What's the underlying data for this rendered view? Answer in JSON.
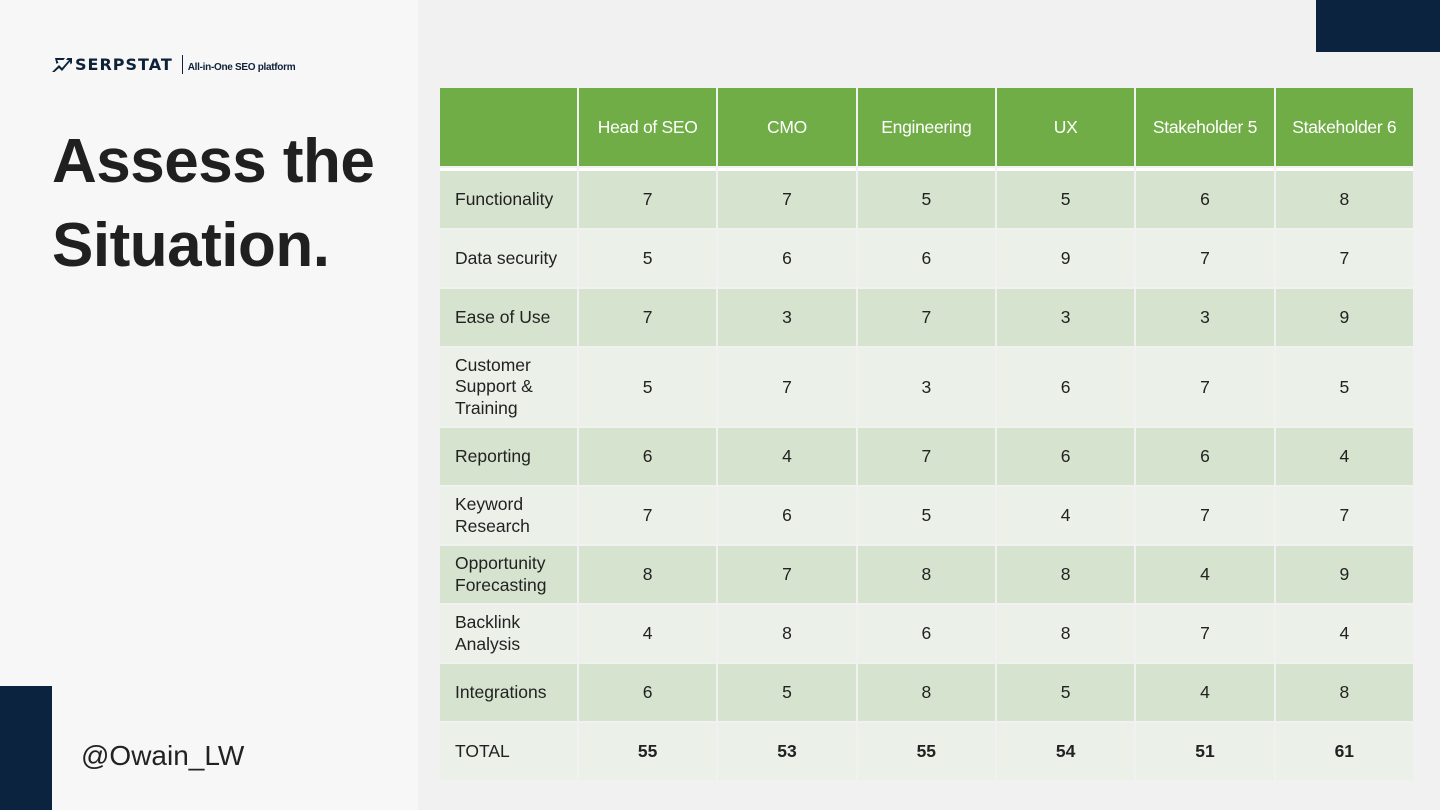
{
  "brand": {
    "name": "SERPSTAT",
    "tagline": "All-in-One SEO platform"
  },
  "slide": {
    "title_line1": "Assess the",
    "title_line2": "Situation.",
    "handle": "@Owain_LW"
  },
  "colors": {
    "header_green": "#70ad47",
    "row_dark": "#d6e3ce",
    "row_light": "#ebf0e8",
    "navy": "#0c2340"
  },
  "table": {
    "columns": [
      "",
      "Head of SEO",
      "CMO",
      "Engineering",
      "UX",
      "Stakeholder 5",
      "Stakeholder 6"
    ],
    "rows": [
      {
        "label": "Functionality",
        "values": [
          "7",
          "7",
          "5",
          "5",
          "6",
          "8"
        ]
      },
      {
        "label": "Data security",
        "values": [
          "5",
          "6",
          "6",
          "9",
          "7",
          "7"
        ]
      },
      {
        "label": "Ease of Use",
        "values": [
          "7",
          "3",
          "7",
          "3",
          "3",
          "9"
        ]
      },
      {
        "label": "Customer Support & Training",
        "values": [
          "5",
          "7",
          "3",
          "6",
          "7",
          "5"
        ]
      },
      {
        "label": "Reporting",
        "values": [
          "6",
          "4",
          "7",
          "6",
          "6",
          "4"
        ]
      },
      {
        "label": "Keyword Research",
        "values": [
          "7",
          "6",
          "5",
          "4",
          "7",
          "7"
        ]
      },
      {
        "label": "Opportunity Forecasting",
        "values": [
          "8",
          "7",
          "8",
          "8",
          "4",
          "9"
        ]
      },
      {
        "label": "Backlink Analysis",
        "values": [
          "4",
          "8",
          "6",
          "8",
          "7",
          "4"
        ]
      },
      {
        "label": "Integrations",
        "values": [
          "6",
          "5",
          "8",
          "5",
          "4",
          "8"
        ]
      }
    ],
    "total": {
      "label": "TOTAL",
      "values": [
        "55",
        "53",
        "55",
        "54",
        "51",
        "61"
      ]
    }
  }
}
